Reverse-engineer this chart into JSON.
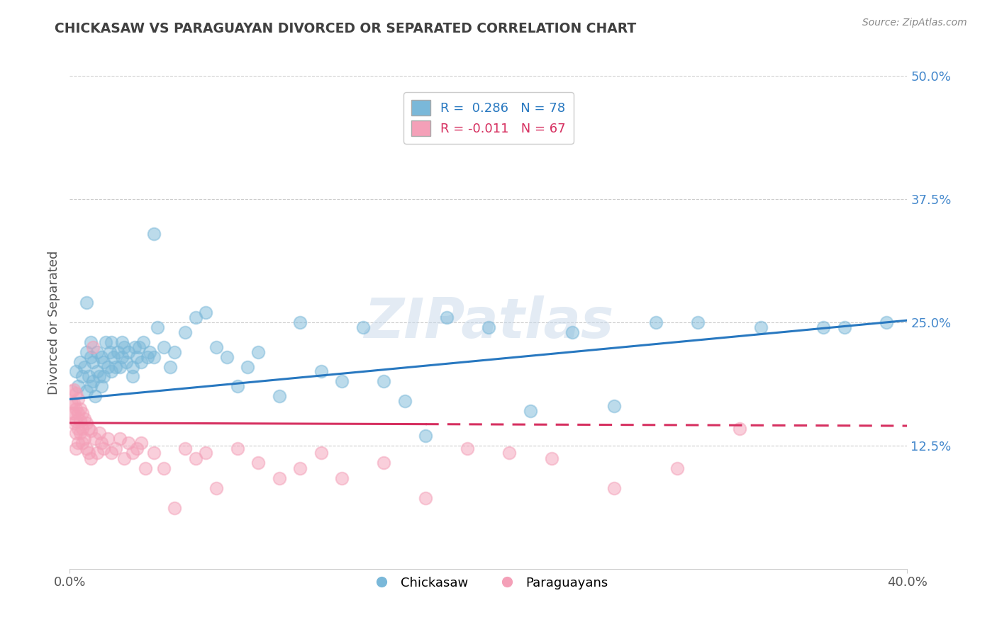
{
  "title": "CHICKASAW VS PARAGUAYAN DIVORCED OR SEPARATED CORRELATION CHART",
  "source_text": "Source: ZipAtlas.com",
  "ylabel": "Divorced or Separated",
  "xlim": [
    0.0,
    0.4
  ],
  "ylim": [
    0.0,
    0.5
  ],
  "xtick_vals": [
    0.0,
    0.4
  ],
  "xtick_labels": [
    "0.0%",
    "40.0%"
  ],
  "ytick_vals": [
    0.125,
    0.25,
    0.375,
    0.5
  ],
  "ytick_labels": [
    "12.5%",
    "25.0%",
    "37.5%",
    "50.0%"
  ],
  "legend_r1": "R =  0.286",
  "legend_n1": "N = 78",
  "legend_r2": "R = -0.011",
  "legend_n2": "N = 67",
  "chickasaw_color": "#7ab8d9",
  "paraguayan_color": "#f4a0b8",
  "trendline_blue": "#2878c0",
  "trendline_pink": "#d63060",
  "watermark": "ZIPatlas",
  "background_color": "#ffffff",
  "blue_line_start": 0.172,
  "blue_line_end": 0.252,
  "pink_line_start_x": 0.0,
  "pink_line_start_y": 0.148,
  "pink_line_solid_end_x": 0.17,
  "pink_line_end_y": 0.145,
  "chickasaw_x": [
    0.003,
    0.004,
    0.005,
    0.006,
    0.007,
    0.008,
    0.008,
    0.009,
    0.01,
    0.01,
    0.011,
    0.011,
    0.012,
    0.013,
    0.013,
    0.014,
    0.015,
    0.016,
    0.016,
    0.017,
    0.018,
    0.019,
    0.02,
    0.021,
    0.022,
    0.023,
    0.024,
    0.025,
    0.026,
    0.027,
    0.028,
    0.03,
    0.031,
    0.032,
    0.033,
    0.034,
    0.035,
    0.037,
    0.038,
    0.04,
    0.042,
    0.045,
    0.048,
    0.05,
    0.055,
    0.06,
    0.065,
    0.07,
    0.075,
    0.08,
    0.085,
    0.09,
    0.1,
    0.11,
    0.12,
    0.13,
    0.14,
    0.15,
    0.16,
    0.17,
    0.18,
    0.2,
    0.22,
    0.24,
    0.26,
    0.28,
    0.3,
    0.33,
    0.36,
    0.37,
    0.39,
    0.008,
    0.01,
    0.015,
    0.02,
    0.025,
    0.03,
    0.04
  ],
  "chickasaw_y": [
    0.2,
    0.185,
    0.21,
    0.195,
    0.205,
    0.18,
    0.22,
    0.195,
    0.185,
    0.215,
    0.19,
    0.21,
    0.175,
    0.22,
    0.2,
    0.195,
    0.185,
    0.21,
    0.195,
    0.23,
    0.205,
    0.22,
    0.2,
    0.215,
    0.205,
    0.22,
    0.205,
    0.215,
    0.225,
    0.21,
    0.22,
    0.205,
    0.225,
    0.215,
    0.225,
    0.21,
    0.23,
    0.215,
    0.22,
    0.34,
    0.245,
    0.225,
    0.205,
    0.22,
    0.24,
    0.255,
    0.26,
    0.225,
    0.215,
    0.185,
    0.205,
    0.22,
    0.175,
    0.25,
    0.2,
    0.19,
    0.245,
    0.19,
    0.17,
    0.135,
    0.255,
    0.245,
    0.16,
    0.24,
    0.165,
    0.25,
    0.25,
    0.245,
    0.245,
    0.245,
    0.25,
    0.27,
    0.23,
    0.215,
    0.23,
    0.23,
    0.195,
    0.215
  ],
  "paraguayan_x": [
    0.001,
    0.001,
    0.001,
    0.002,
    0.002,
    0.002,
    0.002,
    0.003,
    0.003,
    0.003,
    0.003,
    0.003,
    0.004,
    0.004,
    0.004,
    0.004,
    0.005,
    0.005,
    0.005,
    0.006,
    0.006,
    0.006,
    0.007,
    0.007,
    0.008,
    0.008,
    0.009,
    0.009,
    0.01,
    0.01,
    0.011,
    0.012,
    0.013,
    0.014,
    0.015,
    0.016,
    0.018,
    0.02,
    0.022,
    0.024,
    0.026,
    0.028,
    0.03,
    0.032,
    0.034,
    0.036,
    0.04,
    0.045,
    0.05,
    0.055,
    0.06,
    0.065,
    0.07,
    0.08,
    0.09,
    0.1,
    0.11,
    0.12,
    0.13,
    0.15,
    0.17,
    0.19,
    0.21,
    0.23,
    0.26,
    0.29,
    0.32
  ],
  "paraguayan_y": [
    0.18,
    0.168,
    0.158,
    0.182,
    0.168,
    0.158,
    0.148,
    0.178,
    0.162,
    0.15,
    0.138,
    0.122,
    0.172,
    0.158,
    0.142,
    0.128,
    0.162,
    0.15,
    0.138,
    0.158,
    0.142,
    0.128,
    0.152,
    0.132,
    0.148,
    0.122,
    0.142,
    0.118,
    0.14,
    0.112,
    0.225,
    0.132,
    0.118,
    0.138,
    0.128,
    0.122,
    0.132,
    0.118,
    0.122,
    0.132,
    0.112,
    0.128,
    0.118,
    0.122,
    0.128,
    0.102,
    0.118,
    0.102,
    0.062,
    0.122,
    0.112,
    0.118,
    0.082,
    0.122,
    0.108,
    0.092,
    0.102,
    0.118,
    0.092,
    0.108,
    0.072,
    0.122,
    0.118,
    0.112,
    0.082,
    0.102,
    0.142
  ]
}
